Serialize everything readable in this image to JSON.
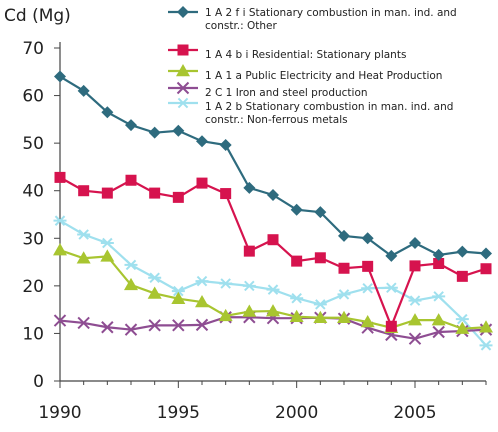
{
  "chart_data": {
    "type": "line",
    "ylabel": "Cd (Mg)",
    "xlabel": "",
    "x": [
      1990,
      1991,
      1992,
      1993,
      1994,
      1995,
      1996,
      1997,
      1998,
      1999,
      2000,
      2001,
      2002,
      2003,
      2004,
      2005,
      2006,
      2007,
      2008
    ],
    "xticks": [
      1990,
      1995,
      2000,
      2005
    ],
    "xlim": [
      1990,
      2008
    ],
    "ylim": [
      0,
      70
    ],
    "yticks": [
      0,
      10,
      20,
      30,
      40,
      50,
      60,
      70
    ],
    "grid": false,
    "legend_position": "top-right",
    "series": [
      {
        "name": "1 A 2 f i Stationary combustion in man. ind. and constr.: Other",
        "legend_lines": [
          "1 A 2 f i Stationary combustion in man. ind. and",
          "constr.: Other"
        ],
        "color": "#2E6B7E",
        "marker": "diamond",
        "values": [
          64,
          61,
          56.5,
          53.8,
          52.2,
          52.6,
          50.4,
          49.6,
          40.6,
          39.1,
          36,
          35.5,
          30.5,
          30,
          26.3,
          29,
          26.5,
          27.2,
          26.8
        ]
      },
      {
        "name": "1 A 4 b i Residential: Stationary plants",
        "legend_lines": [
          "1 A 4 b i Residential: Stationary plants"
        ],
        "color": "#D6134E",
        "marker": "square",
        "values": [
          42.8,
          40,
          39.5,
          42.2,
          39.5,
          38.6,
          41.6,
          39.4,
          27.3,
          29.7,
          25.2,
          25.9,
          23.7,
          24.1,
          11.5,
          24.2,
          24.7,
          22,
          23.6
        ]
      },
      {
        "name": "1 A 1 a Public Electricity and Heat Production",
        "legend_lines": [
          "1 A 1 a Public Electricity and Heat Production"
        ],
        "color": "#A8C530",
        "marker": "triangle",
        "values": [
          27.5,
          25.8,
          26.2,
          20.2,
          18.4,
          17.3,
          16.6,
          13.7,
          14.6,
          14.7,
          13.5,
          13.3,
          13.3,
          12.4,
          11.2,
          12.8,
          12.8,
          11,
          11.3
        ]
      },
      {
        "name": "2 C 1 Iron and steel production",
        "legend_lines": [
          "2 C 1 Iron and steel production"
        ],
        "color": "#8E4D92",
        "marker": "x",
        "values": [
          12.7,
          12.2,
          11.3,
          10.8,
          11.7,
          11.7,
          11.8,
          13.4,
          13.4,
          13.2,
          13.2,
          13.3,
          13.1,
          11.2,
          9.7,
          8.9,
          10.3,
          10.5,
          10.8
        ]
      },
      {
        "name": "1 A 2 b Stationary combustion in man. ind. and constr.: Non-ferrous metals",
        "legend_lines": [
          "1 A 2 b Stationary combustion in man. ind. and",
          "constr.: Non-ferrous metals"
        ],
        "color": "#9FE0EE",
        "marker": "asterisk",
        "values": [
          33.7,
          30.8,
          29,
          24.4,
          21.7,
          18.9,
          21,
          20.5,
          20,
          19.2,
          17.4,
          16.1,
          18.2,
          19.5,
          19.6,
          16.9,
          17.8,
          13,
          7.5
        ]
      }
    ]
  }
}
